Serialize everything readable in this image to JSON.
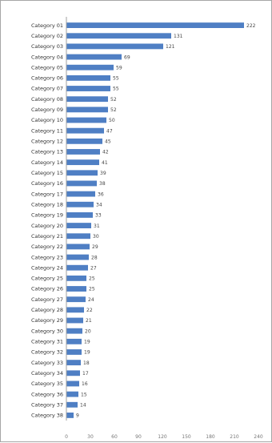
{
  "chart_data": {
    "type": "bar",
    "orientation": "horizontal",
    "title": "",
    "xlabel": "",
    "ylabel": "",
    "categories": [
      "Category 01",
      "Category 02",
      "Category 03",
      "Category 04",
      "Category 05",
      "Category 06",
      "Category 07",
      "Category 08",
      "Category 09",
      "Category 10",
      "Category 11",
      "Category 12",
      "Category 13",
      "Category 14",
      "Category 15",
      "Category 16",
      "Category 17",
      "Category 18",
      "Category 19",
      "Category 20",
      "Category 21",
      "Category 22",
      "Category 23",
      "Category 24",
      "Category 25",
      "Category 26",
      "Category 27",
      "Category 28",
      "Category 29",
      "Category 30",
      "Category 31",
      "Category 32",
      "Category 33",
      "Category 34",
      "Category 35",
      "Category 36",
      "Category 37",
      "Category 38"
    ],
    "values": [
      222,
      131,
      121,
      69,
      59,
      55,
      55,
      52,
      52,
      50,
      47,
      45,
      42,
      41,
      39,
      38,
      36,
      34,
      33,
      31,
      30,
      29,
      28,
      27,
      25,
      25,
      24,
      22,
      21,
      20,
      19,
      19,
      18,
      17,
      16,
      15,
      14,
      9
    ],
    "value_labels": [
      "222",
      "131",
      "121",
      "69",
      "59",
      "55",
      "55",
      "52",
      "52",
      "50",
      "47",
      "45",
      "42",
      "41",
      "39",
      "38",
      "36",
      "34",
      "33",
      "31",
      "30",
      "29",
      "28",
      "27",
      "25",
      "25",
      "24",
      "22",
      "21",
      "20",
      "19",
      "19",
      "18",
      "17",
      "16",
      "15",
      "14",
      "9"
    ],
    "xlim": [
      0,
      240
    ],
    "x_ticks": [
      "0",
      "30",
      "60",
      "90",
      "120",
      "150",
      "180",
      "210",
      "240"
    ],
    "grid": false,
    "legend": "none",
    "bar_color": "#4f7fc4"
  }
}
